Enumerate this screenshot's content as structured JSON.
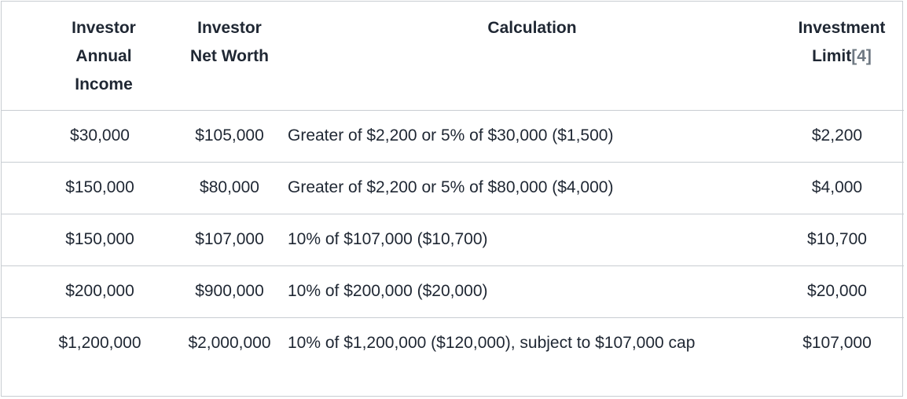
{
  "headers": {
    "income": [
      "Investor",
      "Annual",
      "Income"
    ],
    "net_worth": [
      "Investor",
      "Net Worth"
    ],
    "calculation": "Calculation",
    "limit": [
      "Investment",
      "Limit"
    ],
    "limit_ref": "[4]"
  },
  "rows": [
    {
      "income": "$30,000",
      "net_worth": "$105,000",
      "calculation": "Greater of $2,200 or 5% of $30,000 ($1,500)",
      "limit": "$2,200"
    },
    {
      "income": "$150,000",
      "net_worth": "$80,000",
      "calculation": "Greater of $2,200 or 5% of $80,000 ($4,000)",
      "limit": "$4,000"
    },
    {
      "income": "$150,000",
      "net_worth": "$107,000",
      "calculation": "10% of $107,000 ($10,700)",
      "limit": "$10,700"
    },
    {
      "income": "$200,000",
      "net_worth": "$900,000",
      "calculation": "10% of $200,000 ($20,000)",
      "limit": "$20,000"
    },
    {
      "income": "$1,200,000",
      "net_worth": "$2,000,000",
      "calculation": "10% of $1,200,000 ($120,000), subject to $107,000 cap",
      "limit": "$107,000"
    }
  ]
}
